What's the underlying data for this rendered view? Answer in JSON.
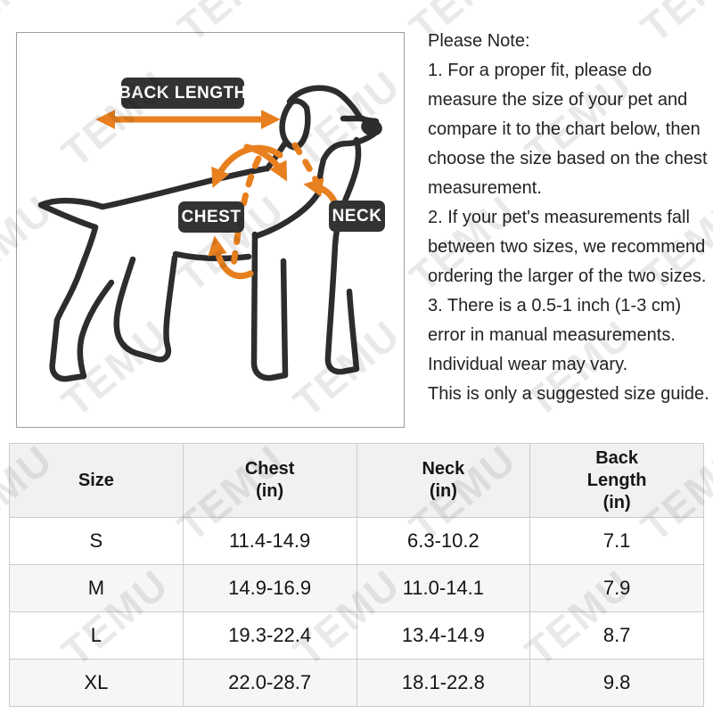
{
  "watermark": {
    "text": "TEMU"
  },
  "diagram": {
    "labels": {
      "back_length": "BACK LENGTH",
      "chest": "CHEST",
      "neck": "NECK"
    },
    "colors": {
      "arrow_orange": "#E8801F",
      "outline_dark": "#2D2D2D",
      "label_bg": "#333333",
      "label_text": "#FFFFFF"
    }
  },
  "note": {
    "lines": [
      "Please Note:",
      "1. For a proper fit, please do",
      "measure the size of your pet and",
      "compare it to the chart below, then",
      "choose the size based on the chest",
      "measurement.",
      "2. If your pet's measurements fall",
      "between two sizes, we recommend",
      "ordering the larger of the two sizes.",
      "3. There is a 0.5-1 inch (1-3 cm)",
      "error in manual measurements.",
      "Individual wear may vary.",
      "This is only a suggested size guide."
    ]
  },
  "size_table": {
    "headers": [
      "Size",
      "Chest\n(in)",
      "Neck\n(in)",
      "Back\nLength\n(in)"
    ],
    "rows": [
      {
        "size": "S",
        "chest": "11.4-14.9",
        "neck": "6.3-10.2",
        "back_length": "7.1"
      },
      {
        "size": "M",
        "chest": "14.9-16.9",
        "neck": "11.0-14.1",
        "back_length": "7.9"
      },
      {
        "size": "L",
        "chest": "19.3-22.4",
        "neck": "13.4-14.9",
        "back_length": "8.7"
      },
      {
        "size": "XL",
        "chest": "22.0-28.7",
        "neck": "18.1-22.8",
        "back_length": "9.8"
      }
    ]
  }
}
